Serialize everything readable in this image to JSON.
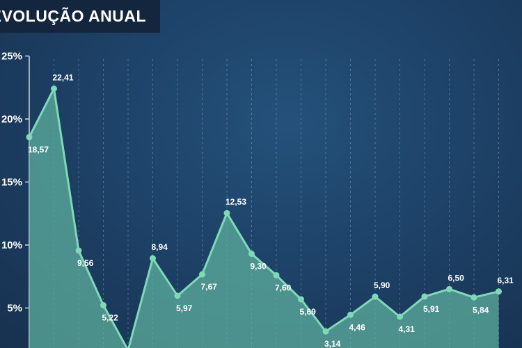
{
  "header": {
    "title": "EVOLUÇÃO ANUAL"
  },
  "colors": {
    "background": "#1e4268",
    "title_bg": "#14263d",
    "line": "#7fd9b8",
    "area": "#5fb3a0",
    "text": "#ffffff",
    "grid": "#8fa8c4"
  },
  "chart_data": {
    "type": "area",
    "title": "EVOLUÇÃO ANUAL",
    "xlabel": "",
    "ylabel": "",
    "ylim": [
      0,
      25
    ],
    "yticks": [
      "5%",
      "10%",
      "15%",
      "20%",
      "25%"
    ],
    "ytick_values": [
      5,
      10,
      15,
      20,
      25
    ],
    "grid": "vertical dashed",
    "series": [
      {
        "values": [
          18.57,
          22.41,
          9.56,
          5.22,
          1.65,
          8.94,
          5.97,
          7.67,
          12.53,
          9.3,
          7.6,
          5.69,
          3.14,
          4.46,
          5.9,
          4.31,
          5.91,
          6.5,
          5.84,
          6.31
        ],
        "labels": [
          "18,57",
          "22,41",
          "9,56",
          "5,22",
          "",
          "8,94",
          "5,97",
          "7,67",
          "12,53",
          "9,30",
          "7,60",
          "5,69",
          "3,14",
          "4,46",
          "5,90",
          "4,31",
          "5,91",
          "6,50",
          "5,84",
          "6,31"
        ]
      }
    ]
  }
}
